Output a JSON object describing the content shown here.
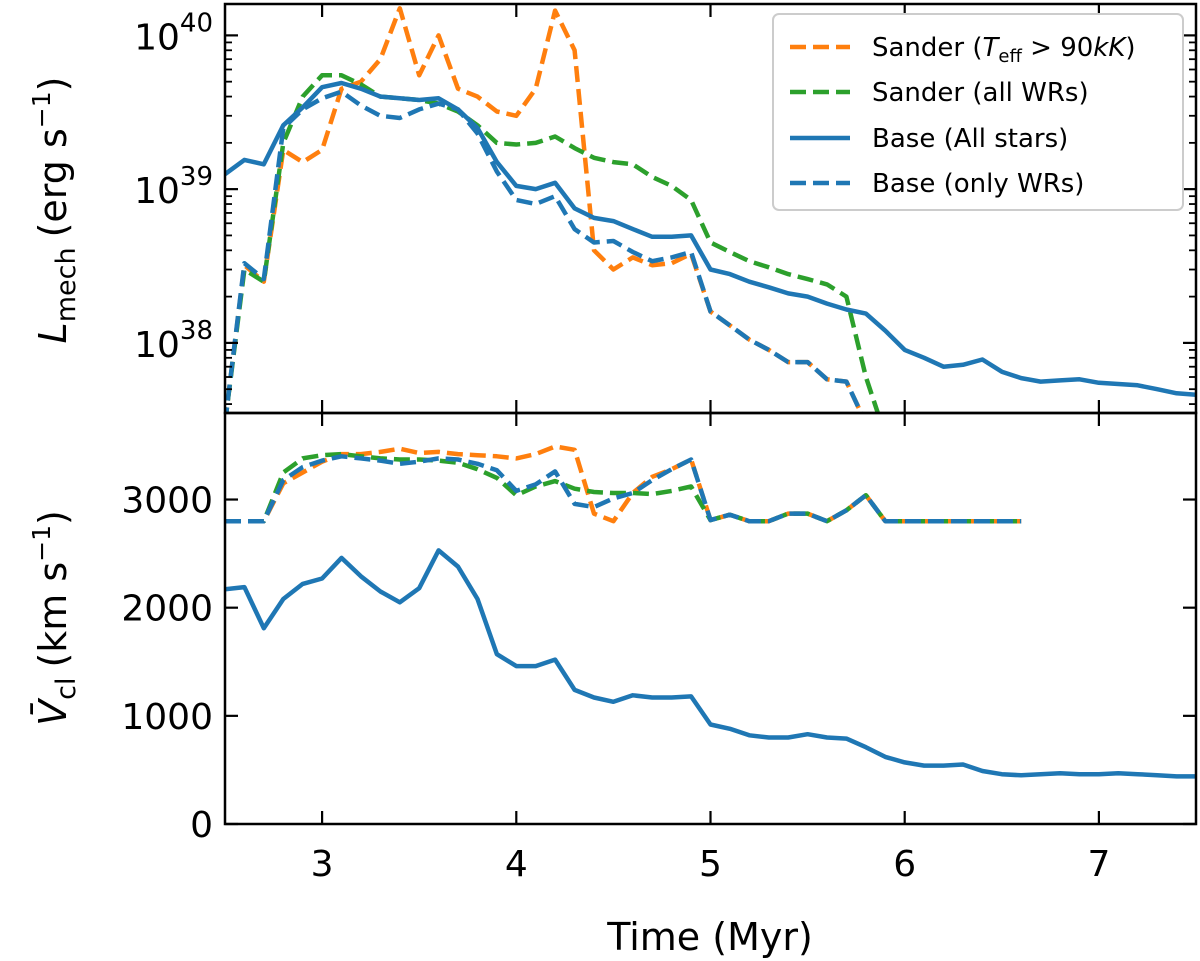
{
  "chart_data": [
    {
      "type": "line",
      "panel": "top",
      "yscale": "log",
      "ylabel_text": "L",
      "ylabel_sub": "mech",
      "ylabel_unit_pre": "(erg s",
      "ylabel_unit_exp": "−1",
      "ylabel_unit_post": ")",
      "xlim": [
        2.5,
        7.5
      ],
      "ylim": [
        3.5e+37,
        1.6e+40
      ],
      "yticks": [
        {
          "value": 1e+38,
          "base": "10",
          "exp": "38"
        },
        {
          "value": 1e+39,
          "base": "10",
          "exp": "39"
        },
        {
          "value": 1e+40,
          "base": "10",
          "exp": "40"
        }
      ],
      "legend_position": "top-right",
      "series": [
        {
          "name": "Sander (T_eff > 90kK)",
          "legend": {
            "pre": "Sander (",
            "sym": "T",
            "sub": "eff",
            "post_sym": " > 90",
            "italic": "kK",
            "close": ")"
          },
          "color": "#ff7f0e",
          "dash": true,
          "x": [
            2.5,
            2.6,
            2.7,
            2.8,
            2.9,
            3.0,
            3.1,
            3.2,
            3.3,
            3.4,
            3.5,
            3.6,
            3.7,
            3.8,
            3.9,
            4.0,
            4.1,
            4.2,
            4.3,
            4.4,
            4.5,
            4.6,
            4.7,
            4.8,
            4.9,
            5.0,
            5.1,
            5.2,
            5.3,
            5.4,
            5.5,
            5.6,
            5.7,
            5.8
          ],
          "y": [
            3e+37,
            3.2e+38,
            2.5e+38,
            1.8e+39,
            1.5e+39,
            1.8e+39,
            4.5e+39,
            5e+39,
            7e+39,
            1.5e+40,
            5.5e+39,
            1e+40,
            4.5e+39,
            4e+39,
            3.2e+39,
            3e+39,
            4.5e+39,
            1.45e+40,
            8e+39,
            4e+38,
            3e+38,
            3.6e+38,
            3.2e+38,
            3.3e+38,
            3.8e+38,
            1.6e+38,
            1.3e+38,
            1.05e+38,
            9e+37,
            7.5e+37,
            7.5e+37,
            5.8e+37,
            5.6e+37,
            3e+37
          ]
        },
        {
          "name": "Sander (all WRs)",
          "legend": {
            "pre": "Sander (all WRs)"
          },
          "color": "#2ca02c",
          "dash": true,
          "x": [
            2.5,
            2.6,
            2.7,
            2.8,
            2.9,
            3.0,
            3.1,
            3.2,
            3.3,
            3.4,
            3.5,
            3.6,
            3.7,
            3.8,
            3.9,
            4.0,
            4.1,
            4.2,
            4.3,
            4.4,
            4.5,
            4.6,
            4.7,
            4.8,
            4.9,
            5.0,
            5.1,
            5.2,
            5.3,
            5.4,
            5.5,
            5.6,
            5.7,
            5.8,
            5.9
          ],
          "y": [
            3e+37,
            3e+38,
            2.5e+38,
            2e+39,
            4e+39,
            5.5e+39,
            5.5e+39,
            4.8e+39,
            4e+39,
            3.9e+39,
            3.8e+39,
            3.6e+39,
            3.2e+39,
            2.6e+39,
            2e+39,
            1.95e+39,
            2e+39,
            2.2e+39,
            1.85e+39,
            1.6e+39,
            1.5e+39,
            1.45e+39,
            1.2e+39,
            1.05e+39,
            8.5e+38,
            4.5e+38,
            3.9e+38,
            3.4e+38,
            3.1e+38,
            2.8e+38,
            2.6e+38,
            2.4e+38,
            2e+38,
            6e+37,
            2.5e+37
          ]
        },
        {
          "name": "Base (All stars)",
          "legend": {
            "pre": "Base (All stars)"
          },
          "color": "#1f77b4",
          "dash": false,
          "x": [
            2.5,
            2.6,
            2.7,
            2.8,
            2.9,
            3.0,
            3.1,
            3.2,
            3.3,
            3.4,
            3.5,
            3.6,
            3.7,
            3.8,
            3.9,
            4.0,
            4.1,
            4.2,
            4.3,
            4.4,
            4.5,
            4.6,
            4.7,
            4.8,
            4.9,
            5.0,
            5.1,
            5.2,
            5.3,
            5.4,
            5.5,
            5.6,
            5.7,
            5.8,
            5.9,
            6.0,
            6.1,
            6.2,
            6.3,
            6.4,
            6.5,
            6.6,
            6.7,
            6.8,
            6.9,
            7.0,
            7.1,
            7.2,
            7.3,
            7.4,
            7.5
          ],
          "y": [
            1.25e+39,
            1.55e+39,
            1.45e+39,
            2.6e+39,
            3.4e+39,
            4.6e+39,
            4.9e+39,
            4.5e+39,
            4e+39,
            3.9e+39,
            3.8e+39,
            3.9e+39,
            3.3e+39,
            2.5e+39,
            1.5e+39,
            1.05e+39,
            1e+39,
            1.1e+39,
            7.5e+38,
            6.5e+38,
            6.2e+38,
            5.5e+38,
            4.9e+38,
            4.9e+38,
            5e+38,
            3e+38,
            2.8e+38,
            2.5e+38,
            2.3e+38,
            2.1e+38,
            2e+38,
            1.8e+38,
            1.65e+38,
            1.55e+38,
            1.2e+38,
            9e+37,
            8e+37,
            7e+37,
            7.2e+37,
            7.8e+37,
            6.5e+37,
            5.9e+37,
            5.6e+37,
            5.7e+37,
            5.8e+37,
            5.5e+37,
            5.4e+37,
            5.3e+37,
            5e+37,
            4.7e+37,
            4.6e+37
          ]
        },
        {
          "name": "Base (only WRs)",
          "legend": {
            "pre": "Base (only WRs)"
          },
          "color": "#1f77b4",
          "dash": true,
          "x": [
            2.5,
            2.6,
            2.7,
            2.8,
            2.9,
            3.0,
            3.1,
            3.2,
            3.3,
            3.4,
            3.5,
            3.6,
            3.7,
            3.8,
            3.9,
            4.0,
            4.1,
            4.2,
            4.3,
            4.4,
            4.5,
            4.6,
            4.7,
            4.8,
            4.9,
            5.0,
            5.1,
            5.2,
            5.3,
            5.4,
            5.5,
            5.6,
            5.7,
            5.8
          ],
          "y": [
            3e+37,
            3.3e+38,
            2.6e+38,
            2.5e+39,
            3.3e+39,
            3.9e+39,
            4.3e+39,
            3.5e+39,
            3e+39,
            2.9e+39,
            3.3e+39,
            3.6e+39,
            3.3e+39,
            2.3e+39,
            1.3e+39,
            8.5e+38,
            8e+38,
            9e+38,
            5.5e+38,
            4.5e+38,
            4.6e+38,
            3.9e+38,
            3.4e+38,
            3.6e+38,
            3.9e+38,
            1.6e+38,
            1.3e+38,
            1.05e+38,
            9e+37,
            7.5e+37,
            7.5e+37,
            5.8e+37,
            5.6e+37,
            3e+37
          ]
        }
      ]
    },
    {
      "type": "line",
      "panel": "bottom",
      "yscale": "linear",
      "ylabel_text": "V̄",
      "ylabel_sub": "cl",
      "ylabel_unit_pre": "(km s",
      "ylabel_unit_exp": "−1",
      "ylabel_unit_post": ")",
      "xlabel": "Time (Myr)",
      "xlim": [
        2.5,
        7.5
      ],
      "ylim": [
        0,
        3800
      ],
      "yticks": [
        0,
        1000,
        2000,
        3000
      ],
      "xticks": [
        3,
        4,
        5,
        6,
        7
      ],
      "series": [
        {
          "name": "Sander (T_eff > 90kK)",
          "color": "#ff7f0e",
          "dash": true,
          "x": [
            2.5,
            2.7,
            2.8,
            2.9,
            3.0,
            3.1,
            3.2,
            3.3,
            3.4,
            3.5,
            3.6,
            3.7,
            3.8,
            3.9,
            4.0,
            4.1,
            4.2,
            4.3,
            4.4,
            4.5,
            4.6,
            4.7,
            4.8,
            4.9,
            5.0,
            5.1,
            5.2,
            5.3,
            5.4,
            5.5,
            5.6,
            5.7,
            5.8,
            5.9,
            6.6
          ],
          "y": [
            2800,
            2800,
            3150,
            3250,
            3350,
            3420,
            3420,
            3440,
            3470,
            3430,
            3440,
            3420,
            3410,
            3400,
            3380,
            3420,
            3490,
            3460,
            2870,
            2800,
            3060,
            3210,
            3280,
            3370,
            2810,
            2860,
            2800,
            2800,
            2870,
            2870,
            2800,
            2900,
            3040,
            2800,
            2800
          ]
        },
        {
          "name": "Sander (all WRs)",
          "color": "#2ca02c",
          "dash": true,
          "x": [
            2.5,
            2.7,
            2.8,
            2.9,
            3.0,
            3.1,
            3.2,
            3.3,
            3.4,
            3.5,
            3.6,
            3.7,
            3.8,
            3.9,
            4.0,
            4.1,
            4.2,
            4.3,
            4.4,
            4.5,
            4.6,
            4.7,
            4.8,
            4.9,
            5.0,
            5.1,
            5.2,
            5.3,
            5.4,
            5.5,
            5.6,
            5.7,
            5.8,
            5.9,
            6.6
          ],
          "y": [
            2800,
            2800,
            3250,
            3380,
            3410,
            3420,
            3400,
            3380,
            3370,
            3370,
            3360,
            3340,
            3280,
            3200,
            3040,
            3120,
            3170,
            3100,
            3070,
            3060,
            3060,
            3050,
            3080,
            3120,
            2810,
            2860,
            2800,
            2800,
            2870,
            2870,
            2800,
            2900,
            3040,
            2800,
            2800
          ]
        },
        {
          "name": "Base (All stars)",
          "color": "#1f77b4",
          "dash": false,
          "x": [
            2.5,
            2.6,
            2.7,
            2.8,
            2.9,
            3.0,
            3.1,
            3.2,
            3.3,
            3.4,
            3.5,
            3.6,
            3.7,
            3.8,
            3.9,
            4.0,
            4.1,
            4.2,
            4.3,
            4.4,
            4.5,
            4.6,
            4.7,
            4.8,
            4.9,
            5.0,
            5.1,
            5.2,
            5.3,
            5.4,
            5.5,
            5.6,
            5.7,
            5.8,
            5.9,
            6.0,
            6.1,
            6.2,
            6.3,
            6.4,
            6.5,
            6.6,
            6.7,
            6.8,
            6.9,
            7.0,
            7.1,
            7.2,
            7.3,
            7.4,
            7.5
          ],
          "y": [
            2170,
            2190,
            1810,
            2080,
            2220,
            2270,
            2460,
            2290,
            2150,
            2050,
            2180,
            2530,
            2380,
            2080,
            1570,
            1460,
            1460,
            1520,
            1240,
            1170,
            1130,
            1190,
            1170,
            1170,
            1180,
            920,
            880,
            820,
            800,
            800,
            830,
            800,
            790,
            710,
            620,
            570,
            540,
            540,
            550,
            490,
            460,
            450,
            460,
            470,
            460,
            460,
            470,
            460,
            450,
            440,
            440
          ]
        },
        {
          "name": "Base (only WRs)",
          "color": "#1f77b4",
          "dash": true,
          "x": [
            2.5,
            2.7,
            2.8,
            2.9,
            3.0,
            3.1,
            3.2,
            3.3,
            3.4,
            3.5,
            3.6,
            3.7,
            3.8,
            3.9,
            4.0,
            4.1,
            4.2,
            4.3,
            4.4,
            4.5,
            4.6,
            4.7,
            4.8,
            4.9,
            5.0,
            5.1,
            5.2,
            5.3,
            5.4,
            5.5,
            5.6,
            5.7,
            5.8,
            5.9,
            6.6
          ],
          "y": [
            2800,
            2800,
            3180,
            3300,
            3360,
            3400,
            3380,
            3360,
            3330,
            3350,
            3380,
            3370,
            3330,
            3270,
            3080,
            3140,
            3260,
            2960,
            2930,
            3010,
            3060,
            3180,
            3280,
            3370,
            2810,
            2860,
            2800,
            2800,
            2870,
            2870,
            2800,
            2900,
            3040,
            2800,
            2800
          ]
        }
      ]
    }
  ]
}
